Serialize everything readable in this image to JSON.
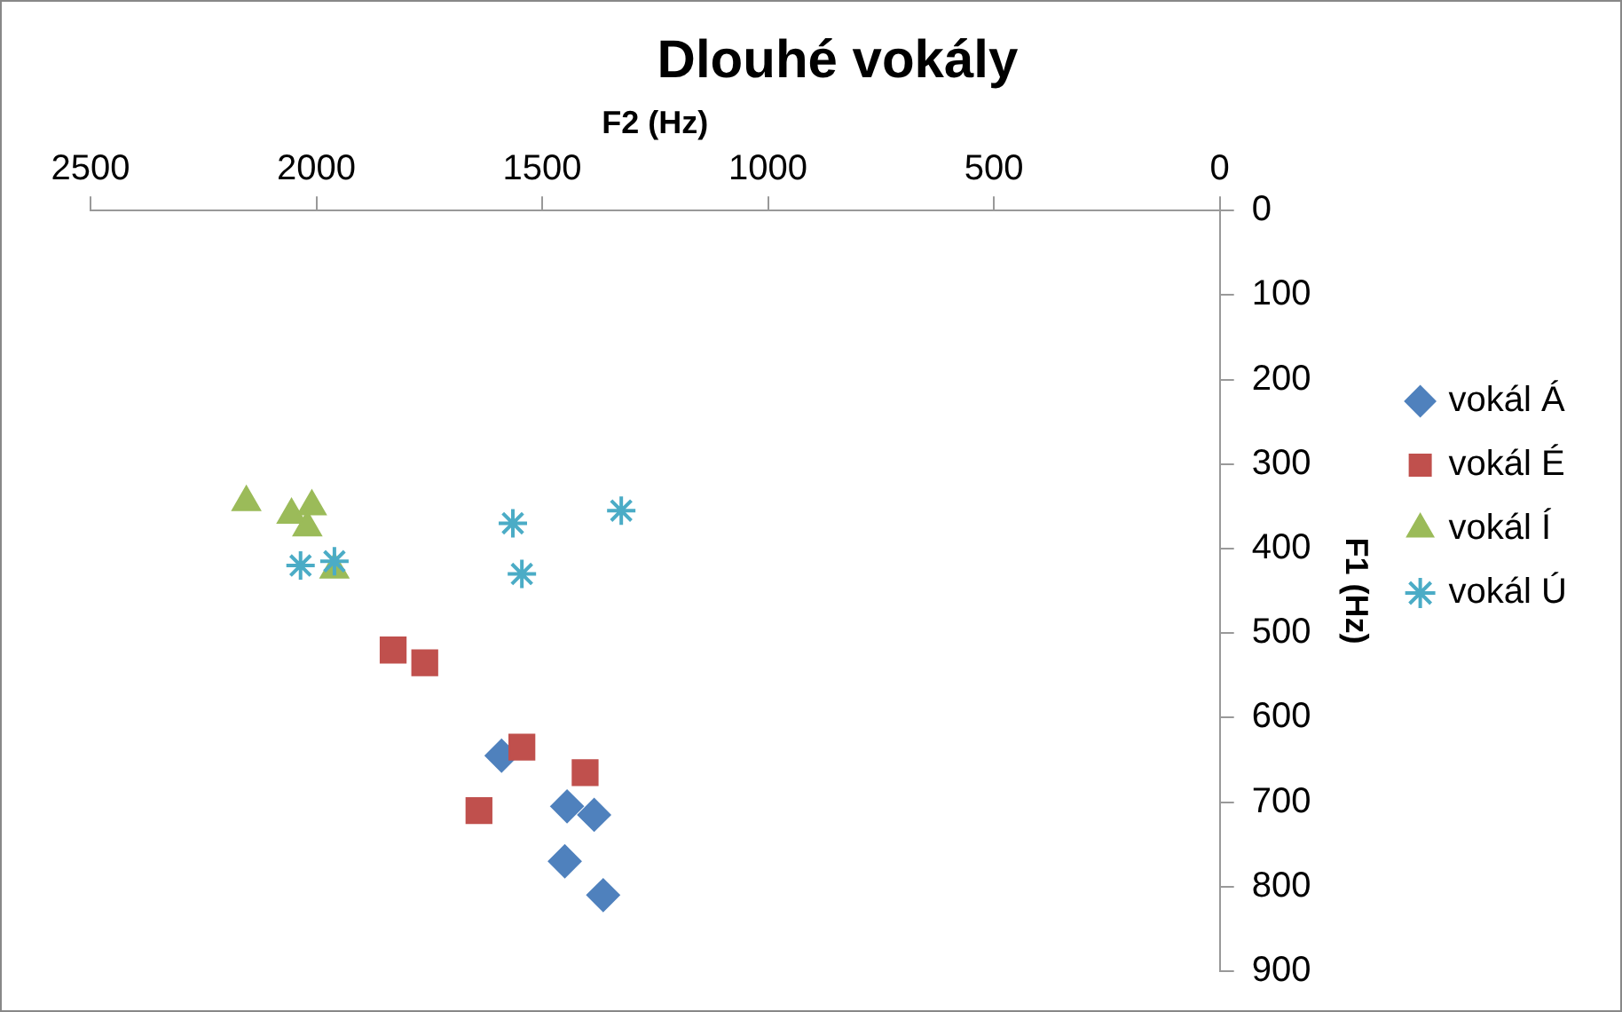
{
  "chart_data": {
    "type": "scatter",
    "title": "Dlouhé vokály",
    "xlabel": "F2 (Hz)",
    "ylabel": "F1 (Hz)",
    "xlim": [
      2500,
      0
    ],
    "xticks": [
      2500,
      2000,
      1500,
      1000,
      500,
      0
    ],
    "ylim": [
      900,
      0
    ],
    "yticks": [
      0,
      100,
      200,
      300,
      400,
      500,
      600,
      700,
      800,
      900
    ],
    "grid": false,
    "legend": "right",
    "series": [
      {
        "name": "vokál Á",
        "color": "#4f81bd",
        "marker": "diamond",
        "x": [
          1590,
          1445,
          1385,
          1450,
          1365
        ],
        "values": [
          645,
          705,
          715,
          770,
          810
        ]
      },
      {
        "name": "vokál É",
        "color": "#c0504d",
        "marker": "square",
        "x": [
          1830,
          1760,
          1545,
          1405,
          1640
        ],
        "values": [
          520,
          535,
          635,
          665,
          710
        ]
      },
      {
        "name": "vokál Í",
        "color": "#9bbb59",
        "marker": "triangle",
        "x": [
          2155,
          2055,
          2010,
          2020,
          1960
        ],
        "values": [
          345,
          360,
          350,
          375,
          425
        ]
      },
      {
        "name": "vokál Ú",
        "color": "#4bacc6",
        "marker": "cross",
        "x": [
          2035,
          1960,
          1565,
          1545,
          1325
        ],
        "values": [
          420,
          415,
          370,
          430,
          355
        ]
      }
    ]
  }
}
